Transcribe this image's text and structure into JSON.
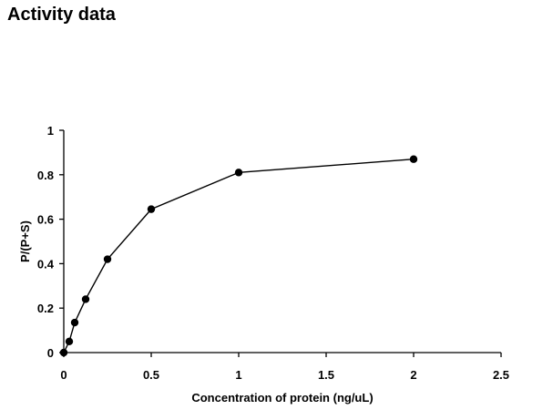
{
  "page": {
    "title": "Activity data"
  },
  "chart_data": {
    "type": "line",
    "title": "",
    "xlabel": "Concentration of protein (ng/uL)",
    "ylabel": "P/(P+S)",
    "xlim": [
      0,
      2.5
    ],
    "ylim": [
      0,
      1
    ],
    "xticks": [
      0,
      0.5,
      1,
      1.5,
      2,
      2.5
    ],
    "xtick_labels": [
      "0",
      "0.5",
      "1",
      "1.5",
      "2",
      "2.5"
    ],
    "yticks": [
      0,
      0.2,
      0.4,
      0.6,
      0.8,
      1
    ],
    "ytick_labels": [
      "0",
      "0.2",
      "0.4",
      "0.6",
      "0.8",
      "1"
    ],
    "grid": false,
    "legend": "none",
    "marker": "circle",
    "series": [
      {
        "color": "#000000",
        "x": [
          0,
          0.03125,
          0.0625,
          0.125,
          0.25,
          0.5,
          1,
          2
        ],
        "y": [
          0,
          0.05,
          0.135,
          0.24,
          0.42,
          0.645,
          0.81,
          0.87
        ]
      }
    ]
  }
}
